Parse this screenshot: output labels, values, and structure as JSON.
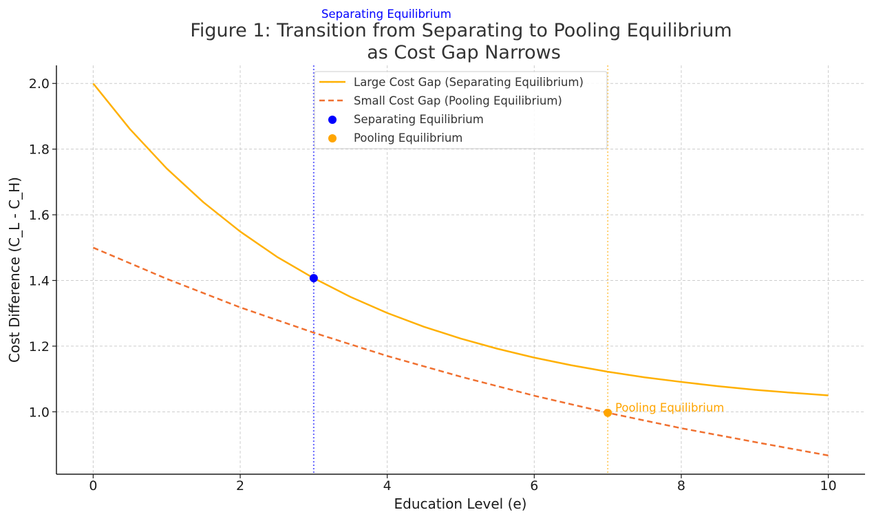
{
  "chart_data": {
    "type": "line",
    "title_lines": [
      "Figure 1: Transition from Separating to Pooling Equilibrium",
      "as Cost Gap Narrows"
    ],
    "xlabel": "Education Level (e)",
    "ylabel": "Cost Difference (C_L - C_H)",
    "xlim": [
      -0.5,
      10.5
    ],
    "ylim": [
      0.81,
      2.055
    ],
    "xticks": [
      0,
      2,
      4,
      6,
      8,
      10
    ],
    "yticks": [
      1.0,
      1.2,
      1.4,
      1.6,
      1.8,
      2.0
    ],
    "ytick_labels": [
      "1.0",
      "1.2",
      "1.4",
      "1.6",
      "1.8",
      "2.0"
    ],
    "grid": true,
    "series": [
      {
        "name": "Large Cost Gap (Separating Equilibrium)",
        "style": "solid",
        "color": "#FFB000",
        "x": [
          0,
          0.5,
          1,
          1.5,
          2,
          2.5,
          3,
          3.5,
          4,
          4.5,
          5,
          5.5,
          6,
          6.5,
          7,
          7.5,
          8,
          8.5,
          9,
          9.5,
          10
        ],
        "y": [
          2.0,
          1.861,
          1.741,
          1.638,
          1.549,
          1.472,
          1.407,
          1.35,
          1.301,
          1.259,
          1.223,
          1.192,
          1.165,
          1.142,
          1.122,
          1.105,
          1.091,
          1.078,
          1.067,
          1.058,
          1.05
        ]
      },
      {
        "name": "Small Cost Gap (Pooling Equilibrium)",
        "style": "dashed",
        "color": "#F07030",
        "x": [
          0,
          1,
          2,
          3,
          4,
          5,
          6,
          7,
          8,
          9,
          10
        ],
        "y": [
          1.5,
          1.405,
          1.318,
          1.241,
          1.17,
          1.107,
          1.049,
          0.997,
          0.95,
          0.908,
          0.867
        ]
      }
    ],
    "points": [
      {
        "name": "Separating Equilibrium",
        "x": 3,
        "y": 1.407,
        "color": "#0000FF"
      },
      {
        "name": "Pooling Equilibrium",
        "x": 7,
        "y": 0.997,
        "color": "#FFA500"
      }
    ],
    "vlines": [
      {
        "x": 3,
        "color": "#6666FF",
        "style": "dotted"
      },
      {
        "x": 7,
        "color": "#FFD070",
        "style": "dotted"
      }
    ],
    "annotations": [
      {
        "text": "Separating Equilibrium",
        "color": "#0000FF"
      },
      {
        "text": "Pooling Equilibrium",
        "color": "#FFA500"
      }
    ],
    "legend": {
      "location": "top-center",
      "entries": [
        {
          "label": "Large Cost Gap (Separating Equilibrium)",
          "kind": "line-solid",
          "color": "#FFB000"
        },
        {
          "label": "Small Cost Gap (Pooling Equilibrium)",
          "kind": "line-dashed",
          "color": "#F07030"
        },
        {
          "label": "Separating Equilibrium",
          "kind": "marker",
          "color": "#0000FF"
        },
        {
          "label": "Pooling Equilibrium",
          "kind": "marker",
          "color": "#FFA500"
        }
      ]
    }
  }
}
